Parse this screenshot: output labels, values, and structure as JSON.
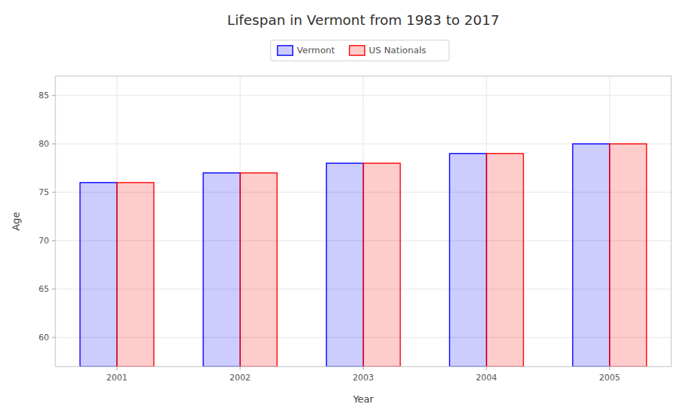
{
  "chart_data": {
    "type": "bar",
    "title": "Lifespan in Vermont from 1983 to 2017",
    "x_label": "Year",
    "y_label": "Age",
    "categories": [
      "2001",
      "2002",
      "2003",
      "2004",
      "2005"
    ],
    "series": [
      {
        "name": "Vermont",
        "color": "#0000ff",
        "values": [
          76,
          77,
          78,
          79,
          80
        ]
      },
      {
        "name": "US Nationals",
        "color": "#ff0000",
        "values": [
          76,
          77,
          78,
          79,
          80
        ]
      }
    ],
    "ylim": [
      57,
      87
    ],
    "yticks": [
      60,
      65,
      70,
      75,
      80,
      85
    ],
    "grid": true,
    "legend": "top"
  }
}
